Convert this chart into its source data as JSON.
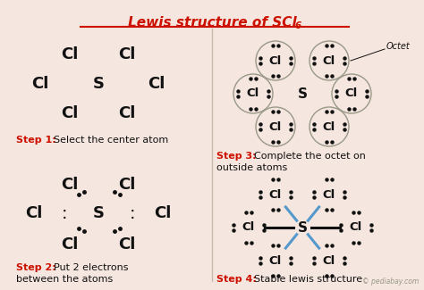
{
  "bg_color": "#f5e6df",
  "title_color": "#cc1100",
  "step_color": "#cc1100",
  "text_color": "#111111",
  "blue_bond_color": "#5599cc",
  "black_bond_color": "#111111",
  "divider_color": "#ccbbaa",
  "watermark": "© pediabay.com",
  "step1_label": "Step 1:",
  "step1_desc": "Select the center atom",
  "step2_label": "Step 2:",
  "step2_desc1": "Put 2 electrons",
  "step2_desc2": "between the atoms",
  "step3_label": "Step 3:",
  "step3_desc1": "Complete the octet on",
  "step3_desc2": "outside atoms",
  "step4_label": "Step 4:",
  "step4_desc": "Stable lewis structure",
  "octet_label": "Octet"
}
